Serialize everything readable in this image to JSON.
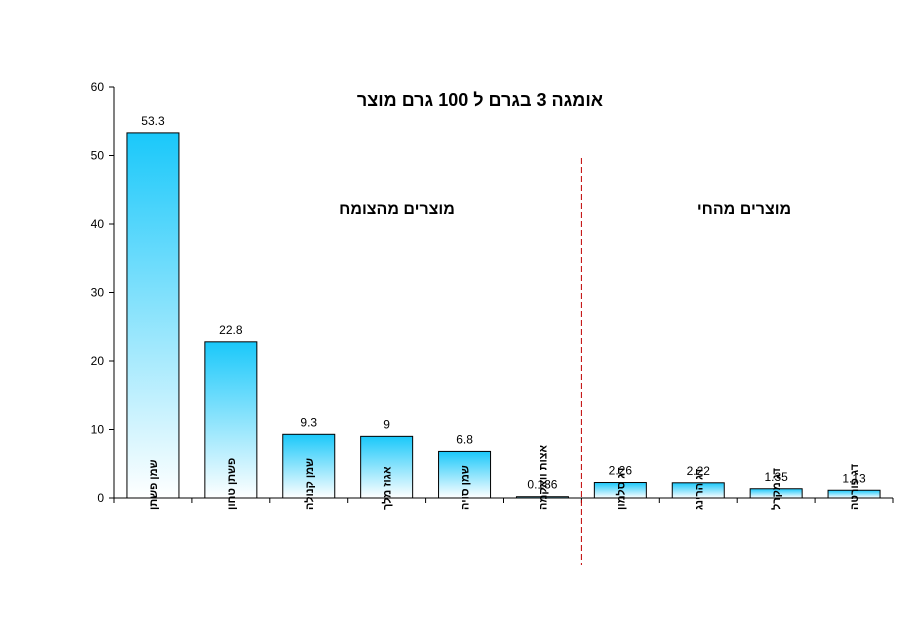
{
  "chart_data": {
    "type": "bar",
    "title": "אומגה 3 בגרם ל 100 גרם מוצר",
    "categories": [
      "שמן פשתן",
      "פשתן טחון",
      "שמן קנולה",
      "אגוז מלך",
      "שמן סויה",
      "אצות וואקמה",
      "דג סלמון",
      "דג הרינג",
      "דג מקרל",
      "דג פורטה"
    ],
    "values": [
      53.3,
      22.8,
      9.3,
      9,
      6.8,
      0.186,
      2.26,
      2.22,
      1.35,
      1.13
    ],
    "value_labels": [
      "53.3",
      "22.8",
      "9.3",
      "9",
      "6.8",
      "0.186",
      "2.26",
      "2.22",
      "1.35",
      "1.13"
    ],
    "ylim": [
      0,
      60
    ],
    "yticks": [
      0,
      10,
      20,
      30,
      40,
      50,
      60
    ],
    "ytick_labels": [
      "0",
      "10",
      "20",
      "30",
      "40",
      "50",
      "60"
    ],
    "grid": false,
    "xlabel": "",
    "ylabel": "",
    "annotations": {
      "plant_group": "מוצרים מהצומח",
      "animal_group": "מוצרים מהחי"
    },
    "divider_after_index": 5,
    "bar_top_color": "#1ac8fa",
    "bar_bottom_color": "#ffffff",
    "divider_color": "#c00000"
  }
}
